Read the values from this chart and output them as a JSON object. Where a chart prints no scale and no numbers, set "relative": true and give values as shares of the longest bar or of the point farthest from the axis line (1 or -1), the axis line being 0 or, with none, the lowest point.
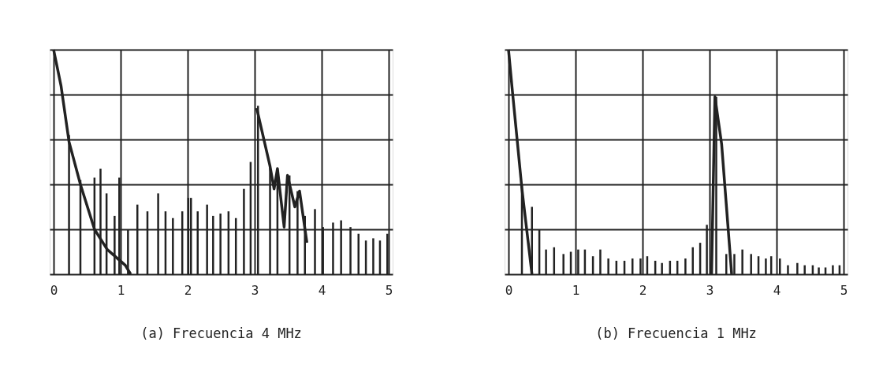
{
  "chart_data": [
    {
      "type": "bar",
      "title": "(a) Frecuencia 4 MHz",
      "relative": true,
      "xlim": [
        0,
        5
      ],
      "xticks": [
        0,
        1,
        2,
        3,
        4,
        5
      ],
      "grid": true,
      "series": [
        {
          "type": "bar",
          "color": "#222222",
          "x": [
            0.23,
            0.4,
            0.61,
            0.7,
            0.79,
            0.91,
            0.98,
            1.11,
            1.25,
            1.4,
            1.56,
            1.67,
            1.78,
            1.92,
            2.01,
            2.05,
            2.15,
            2.29,
            2.38,
            2.49,
            2.61,
            2.72,
            2.84,
            2.94,
            3.05,
            3.23,
            3.34,
            3.52,
            3.64,
            3.75,
            3.9,
            4.02,
            4.17,
            4.29,
            4.43,
            4.55,
            4.66,
            4.77,
            4.87,
            4.98
          ],
          "values": [
            0.62,
            0.42,
            0.43,
            0.47,
            0.36,
            0.26,
            0.43,
            0.2,
            0.31,
            0.28,
            0.36,
            0.28,
            0.25,
            0.28,
            0.34,
            0.34,
            0.28,
            0.31,
            0.26,
            0.27,
            0.28,
            0.25,
            0.38,
            0.5,
            0.75,
            0.48,
            0.47,
            0.44,
            0.37,
            0.26,
            0.29,
            0.21,
            0.23,
            0.24,
            0.21,
            0.18,
            0.15,
            0.16,
            0.15,
            0.18
          ]
        },
        {
          "type": "line",
          "color": "#222222",
          "x": [
            0,
            0.11,
            0.23,
            0.4,
            0.61,
            0.8,
            1.07,
            1.15,
            2.0,
            3.03,
            3.23,
            3.29,
            3.34,
            3.44,
            3.49,
            3.6,
            3.67,
            3.78
          ],
          "values": [
            1.0,
            0.84,
            0.59,
            0.4,
            0.2,
            0.11,
            0.04,
            0.0,
            null,
            0.74,
            0.48,
            0.38,
            0.47,
            0.21,
            0.44,
            0.3,
            0.37,
            0.14
          ]
        }
      ]
    },
    {
      "type": "bar",
      "title": "(b) Frecuencia 1 MHz",
      "relative": true,
      "xlim": [
        0,
        5
      ],
      "xticks": [
        0,
        1,
        2,
        3,
        4,
        5
      ],
      "grid": true,
      "series": [
        {
          "type": "bar",
          "color": "#222222",
          "x": [
            0.2,
            0.35,
            0.46,
            0.56,
            0.68,
            0.82,
            0.93,
            1.04,
            1.14,
            1.26,
            1.37,
            1.49,
            1.61,
            1.73,
            1.85,
            1.97,
            2.07,
            2.19,
            2.29,
            2.41,
            2.52,
            2.64,
            2.75,
            2.86,
            2.96,
            3.1,
            3.25,
            3.37,
            3.49,
            3.62,
            3.73,
            3.84,
            3.92,
            4.05,
            4.17,
            4.31,
            4.42,
            4.54,
            4.63,
            4.73,
            4.84,
            4.94
          ],
          "values": [
            0.4,
            0.3,
            0.2,
            0.11,
            0.12,
            0.09,
            0.1,
            0.11,
            0.11,
            0.08,
            0.11,
            0.07,
            0.06,
            0.06,
            0.07,
            0.07,
            0.08,
            0.06,
            0.05,
            0.06,
            0.06,
            0.07,
            0.12,
            0.14,
            0.22,
            0.79,
            0.09,
            0.09,
            0.11,
            0.09,
            0.08,
            0.07,
            0.08,
            0.07,
            0.04,
            0.05,
            0.04,
            0.04,
            0.03,
            0.03,
            0.04,
            0.04
          ]
        },
        {
          "type": "line",
          "color": "#222222",
          "x": [
            0,
            0.05,
            0.2,
            0.35,
            2.0,
            3.03,
            3.08,
            3.18,
            3.33
          ],
          "values": [
            1.0,
            0.84,
            0.38,
            0.0,
            null,
            0.0,
            0.79,
            0.58,
            0.0
          ]
        }
      ]
    }
  ]
}
